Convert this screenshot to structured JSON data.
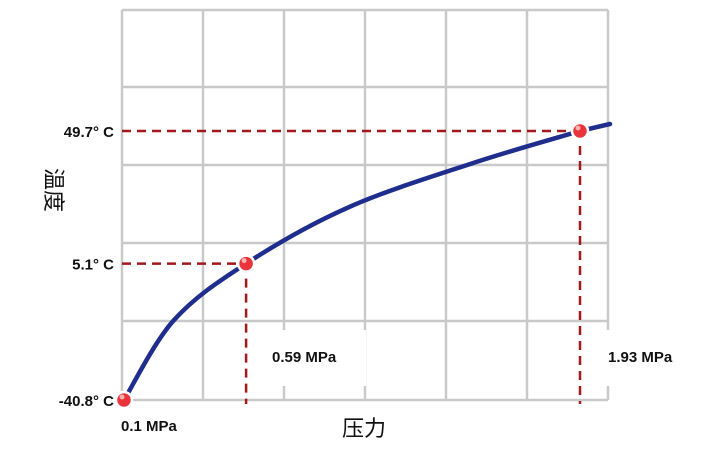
{
  "chart_data": {
    "type": "line",
    "title": "",
    "xlabel": "压力",
    "ylabel": "温度",
    "grid": true,
    "colors": {
      "curve": "#1f2d8c",
      "marker": "#e8343a",
      "guide": "#a3191b",
      "grid": "#c9c9c9"
    },
    "xlim": [
      0.1,
      1.93
    ],
    "ylim": [
      -40.8,
      49.7
    ],
    "series": [
      {
        "x": [
          0.1,
          0.3,
          0.59,
          1.0,
          1.5,
          1.93
        ],
        "y": [
          -40.8,
          -14.0,
          5.1,
          24.0,
          38.9,
          49.7
        ]
      }
    ],
    "highlighted_points": [
      {
        "x": 0.1,
        "y": -40.8,
        "x_label": "0.1 MPa",
        "y_label": "-40.8° C"
      },
      {
        "x": 0.59,
        "y": 5.1,
        "x_label": "0.59 MPa",
        "y_label": "5.1° C"
      },
      {
        "x": 1.93,
        "y": 49.7,
        "x_label": "1.93 MPa",
        "y_label": "49.7° C"
      }
    ]
  }
}
